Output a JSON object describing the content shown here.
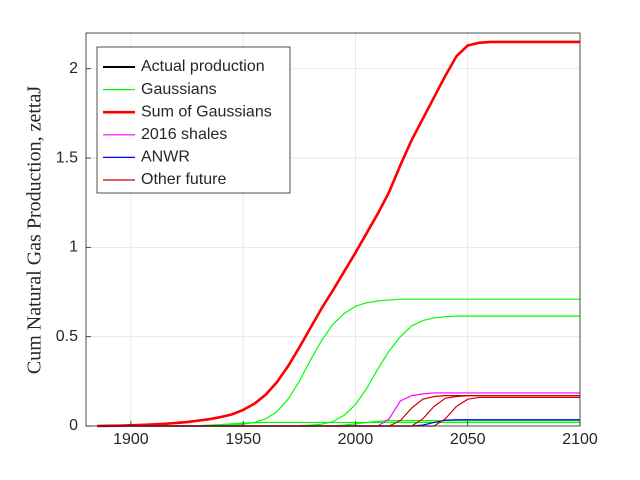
{
  "chart_data": {
    "type": "line",
    "ylabel": "Cum Natural Gas Production, zettaJ",
    "xlim": [
      1880,
      2100
    ],
    "ylim": [
      0,
      2.2
    ],
    "xticks": [
      1900,
      1950,
      2000,
      2050,
      2100
    ],
    "yticks": [
      0,
      0.5,
      1,
      1.5,
      2
    ],
    "grid": true,
    "legend": "upper left",
    "x": [
      1885,
      1890,
      1895,
      1900,
      1905,
      1910,
      1915,
      1920,
      1925,
      1930,
      1935,
      1940,
      1945,
      1950,
      1955,
      1960,
      1965,
      1970,
      1975,
      1980,
      1985,
      1990,
      1995,
      2000,
      2005,
      2010,
      2015,
      2020,
      2025,
      2030,
      2035,
      2040,
      2045,
      2050,
      2055,
      2060,
      2065,
      2070,
      2075,
      2080,
      2085,
      2090,
      2095,
      2100
    ],
    "series": [
      {
        "name": "Actual production",
        "color": "#000000",
        "values": [
          0,
          0.001,
          0.002,
          0.004,
          0.006,
          0.009,
          0.012,
          0.017,
          0.022,
          0.03,
          0.038,
          0.05,
          0.065,
          0.09,
          0.125,
          0.175,
          0.245,
          0.335,
          0.44,
          0.55,
          0.66,
          0.76,
          0.865,
          0.97,
          1.08,
          1.19,
          1.31,
          1.46,
          null,
          null,
          null,
          null,
          null,
          null,
          null,
          null,
          null,
          null,
          null,
          null,
          null,
          null,
          null,
          null
        ]
      },
      {
        "name": "Gaussians",
        "color": "#00ff00",
        "values": [
          [
            0,
            0,
            0,
            0,
            0,
            0,
            0,
            0,
            0,
            0,
            0,
            0.002,
            0.005,
            0.01,
            0.02,
            0.04,
            0.08,
            0.15,
            0.25,
            0.37,
            0.48,
            0.57,
            0.63,
            0.67,
            0.69,
            0.7,
            0.705,
            0.71,
            0.71,
            0.71,
            0.71,
            0.71,
            0.71,
            0.71,
            0.71,
            0.71,
            0.71,
            0.71,
            0.71,
            0.71,
            0.71,
            0.71,
            0.71,
            0.71
          ],
          [
            0,
            0,
            0,
            0,
            0,
            0,
            0,
            0,
            0,
            0,
            0,
            0,
            0,
            0,
            0,
            0,
            0,
            0,
            0.002,
            0.005,
            0.01,
            0.025,
            0.06,
            0.12,
            0.21,
            0.32,
            0.42,
            0.5,
            0.56,
            0.59,
            0.605,
            0.612,
            0.615,
            0.615,
            0.615,
            0.615,
            0.615,
            0.615,
            0.615,
            0.615,
            0.615,
            0.615,
            0.615,
            0.615
          ],
          [
            0,
            0,
            0,
            0,
            0,
            0,
            0,
            0,
            0,
            0.002,
            0.005,
            0.008,
            0.012,
            0.016,
            0.019,
            0.02,
            0.02,
            0.02,
            0.02,
            0.02,
            0.02,
            0.02,
            0.02,
            0.02,
            0.02,
            0.02,
            0.02,
            0.02,
            0.02,
            0.02,
            0.02,
            0.02,
            0.02,
            0.02,
            0.02,
            0.02,
            0.02,
            0.02,
            0.02,
            0.02,
            0.02,
            0.02,
            0.02,
            0.02
          ],
          [
            0,
            0,
            0,
            0,
            0,
            0,
            0,
            0,
            0,
            0,
            0,
            0,
            0,
            0,
            0,
            0,
            0,
            0,
            0,
            0,
            0,
            0,
            0.005,
            0.012,
            0.02,
            0.026,
            0.03,
            0.03,
            0.03,
            0.03,
            0.03,
            0.03,
            0.03,
            0.03,
            0.03,
            0.03,
            0.03,
            0.03,
            0.03,
            0.03,
            0.03,
            0.03,
            0.03,
            0.03
          ]
        ]
      },
      {
        "name": "Sum of Gaussians",
        "color": "#ff0000",
        "values": [
          0,
          0.001,
          0.002,
          0.004,
          0.006,
          0.009,
          0.012,
          0.017,
          0.022,
          0.03,
          0.038,
          0.05,
          0.065,
          0.09,
          0.125,
          0.175,
          0.245,
          0.335,
          0.44,
          0.55,
          0.66,
          0.76,
          0.865,
          0.97,
          1.08,
          1.19,
          1.31,
          1.46,
          1.6,
          1.72,
          1.84,
          1.96,
          2.07,
          2.13,
          2.145,
          2.15,
          2.15,
          2.15,
          2.15,
          2.15,
          2.15,
          2.15,
          2.15,
          2.15
        ]
      },
      {
        "name": "2016 shales",
        "color": "#ff00ff",
        "values": [
          0,
          0,
          0,
          0,
          0,
          0,
          0,
          0,
          0,
          0,
          0,
          0,
          0,
          0,
          0,
          0,
          0,
          0,
          0,
          0,
          0,
          0,
          0,
          0,
          0,
          0,
          0.04,
          0.14,
          0.17,
          0.18,
          0.185,
          0.185,
          0.185,
          0.185,
          0.185,
          0.185,
          0.185,
          0.185,
          0.185,
          0.185,
          0.185,
          0.185,
          0.185,
          0.185
        ]
      },
      {
        "name": "ANWR",
        "color": "#0000ff",
        "values": [
          0,
          0,
          0,
          0,
          0,
          0,
          0,
          0,
          0,
          0,
          0,
          0,
          0,
          0,
          0,
          0,
          0,
          0,
          0,
          0,
          0,
          0,
          0,
          0,
          0,
          0,
          0,
          0,
          0,
          0.005,
          0.02,
          0.032,
          0.035,
          0.035,
          0.035,
          0.035,
          0.035,
          0.035,
          0.035,
          0.035,
          0.035,
          0.035,
          0.035,
          0.035
        ]
      },
      {
        "name": "Other future",
        "color": "#cc0000",
        "values": [
          [
            0,
            0,
            0,
            0,
            0,
            0,
            0,
            0,
            0,
            0,
            0,
            0,
            0,
            0,
            0,
            0,
            0,
            0,
            0,
            0,
            0,
            0,
            0,
            0,
            0,
            0,
            0,
            0.03,
            0.1,
            0.15,
            0.165,
            0.17,
            0.17,
            0.17,
            0.17,
            0.17,
            0.17,
            0.17,
            0.17,
            0.17,
            0.17,
            0.17,
            0.17,
            0.17
          ],
          [
            0,
            0,
            0,
            0,
            0,
            0,
            0,
            0,
            0,
            0,
            0,
            0,
            0,
            0,
            0,
            0,
            0,
            0,
            0,
            0,
            0,
            0,
            0,
            0,
            0,
            0,
            0,
            0,
            0,
            0.04,
            0.11,
            0.155,
            0.165,
            0.17,
            0.17,
            0.17,
            0.17,
            0.17,
            0.17,
            0.17,
            0.17,
            0.17,
            0.17,
            0.17
          ],
          [
            0,
            0,
            0,
            0,
            0,
            0,
            0,
            0,
            0,
            0,
            0,
            0,
            0,
            0,
            0,
            0,
            0,
            0,
            0,
            0,
            0,
            0,
            0,
            0,
            0,
            0,
            0,
            0,
            0,
            0,
            0,
            0.04,
            0.11,
            0.15,
            0.16,
            0.16,
            0.16,
            0.16,
            0.16,
            0.16,
            0.16,
            0.16,
            0.16,
            0.16
          ]
        ]
      }
    ]
  }
}
